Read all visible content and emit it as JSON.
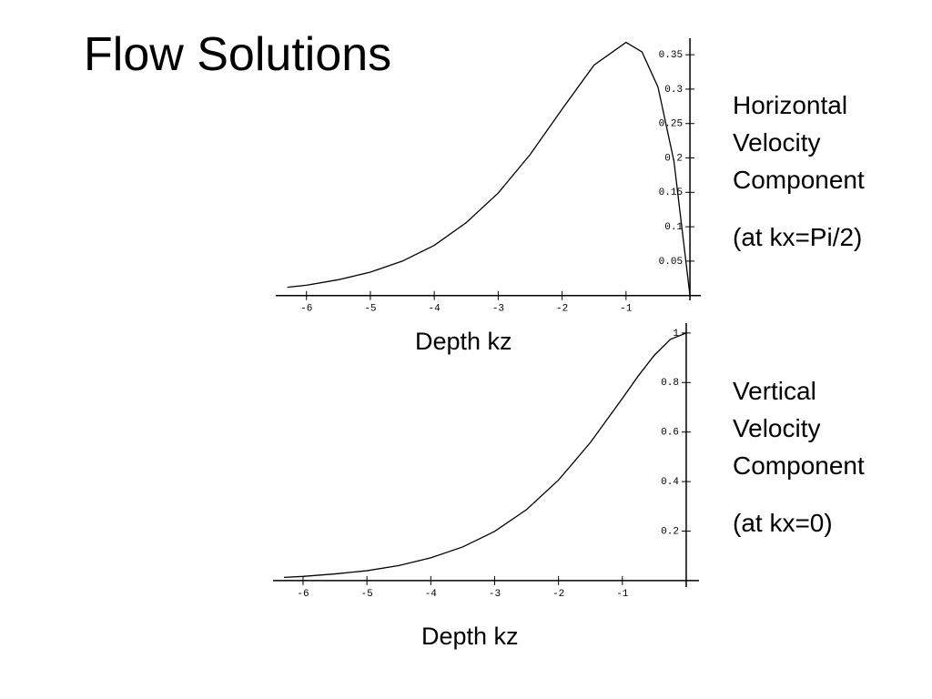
{
  "title": "Flow Solutions",
  "chart_data": [
    {
      "type": "line",
      "x": [
        -6.3,
        -6,
        -5.5,
        -5,
        -4.5,
        -4,
        -3.5,
        -3,
        -2.5,
        -2,
        -1.5,
        -1,
        -0.75,
        -0.5,
        -0.25,
        0
      ],
      "series": [
        {
          "color": "#000000",
          "values": [
            0.012,
            0.015,
            0.023,
            0.034,
            0.05,
            0.073,
            0.106,
            0.149,
            0.205,
            0.271,
            0.335,
            0.368,
            0.354,
            0.303,
            0.195,
            0
          ]
        }
      ],
      "xlim": [
        -6.48,
        0.17
      ],
      "ylim": [
        -0.007,
        0.374
      ],
      "xticks": [
        -6,
        -5,
        -4,
        -3,
        -2,
        -1
      ],
      "yticks": [
        0.05,
        0.1,
        0.15,
        0.2,
        0.25,
        0.3,
        0.35
      ],
      "x_label": "Depth kz",
      "annotations": [
        "Horizontal Velocity Component",
        "(at kx=Pi/2)"
      ]
    },
    {
      "type": "line",
      "x": [
        -6.3,
        -6,
        -5.5,
        -5,
        -4.5,
        -4,
        -3.5,
        -3,
        -2.5,
        -2,
        -1.5,
        -1,
        -0.75,
        -0.5,
        -0.25,
        0
      ],
      "series": [
        {
          "color": "#000000",
          "values": [
            0.013,
            0.017,
            0.027,
            0.04,
            0.061,
            0.092,
            0.136,
            0.199,
            0.287,
            0.406,
            0.558,
            0.736,
            0.827,
            0.91,
            0.974,
            1
          ]
        }
      ],
      "xlim": [
        -6.47,
        0.2
      ],
      "ylim": [
        -0.026,
        1.04
      ],
      "xticks": [
        -6,
        -5,
        -4,
        -3,
        -2,
        -1
      ],
      "yticks": [
        0.2,
        0.4,
        0.6,
        0.8,
        1
      ],
      "x_label": "Depth kz",
      "annotations": [
        "Vertical Velocity Component",
        "(at kx=0)"
      ]
    }
  ]
}
